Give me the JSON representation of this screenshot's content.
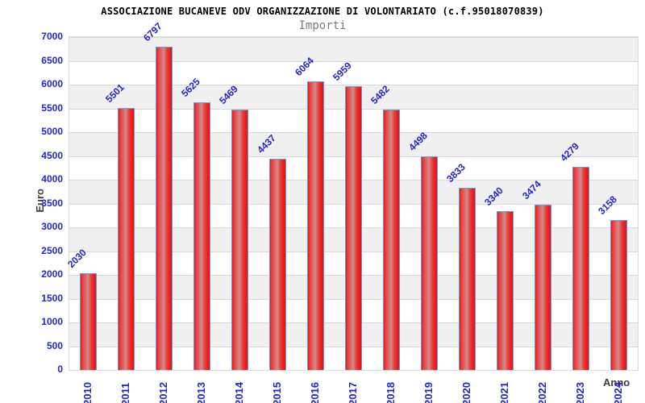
{
  "header": {
    "title": "ASSOCIAZIONE BUCANEVE ODV ORGANIZZAZIONE DI VOLONTARIATO (c.f.95018070839)",
    "subtitle": "Importi"
  },
  "chart_data": {
    "type": "bar",
    "title": "ASSOCIAZIONE BUCANEVE ODV ORGANIZZAZIONE DI VOLONTARIATO (c.f.95018070839)",
    "subtitle": "Importi",
    "xlabel": "Anno",
    "ylabel": "Euro",
    "categories": [
      "2010",
      "2011",
      "2012",
      "2013",
      "2014",
      "2015",
      "2016",
      "2017",
      "2018",
      "2019",
      "2020",
      "2021",
      "2022",
      "2023",
      "2024"
    ],
    "values": [
      2030,
      5501,
      6797,
      5625,
      5469,
      4437,
      6064,
      5959,
      5482,
      4498,
      3833,
      3340,
      3474,
      4279,
      3158
    ],
    "ylim": [
      0,
      7000
    ],
    "ytick_step": 500,
    "yticks": [
      0,
      500,
      1000,
      1500,
      2000,
      2500,
      3000,
      3500,
      4000,
      4500,
      5000,
      5500,
      6000,
      6500,
      7000
    ],
    "grid": true,
    "legend_position": "none",
    "layout": {
      "bar_value_labels_rotation_deg": -45,
      "x_tick_rotation_deg": -90,
      "band_fill_alternating": true
    },
    "colors": {
      "bar_fill": "#e32222",
      "bar_fill_center": "#cd8d8d",
      "bar_border": "#5e9fd8",
      "label_blue": "#2525cc",
      "band_gray": "#f0f0f0",
      "grid_line": "#d9d9d9",
      "axis_title_text": "#3c3c3c",
      "title_text": "#000000",
      "subtitle_text": "#7b7b7b"
    }
  }
}
